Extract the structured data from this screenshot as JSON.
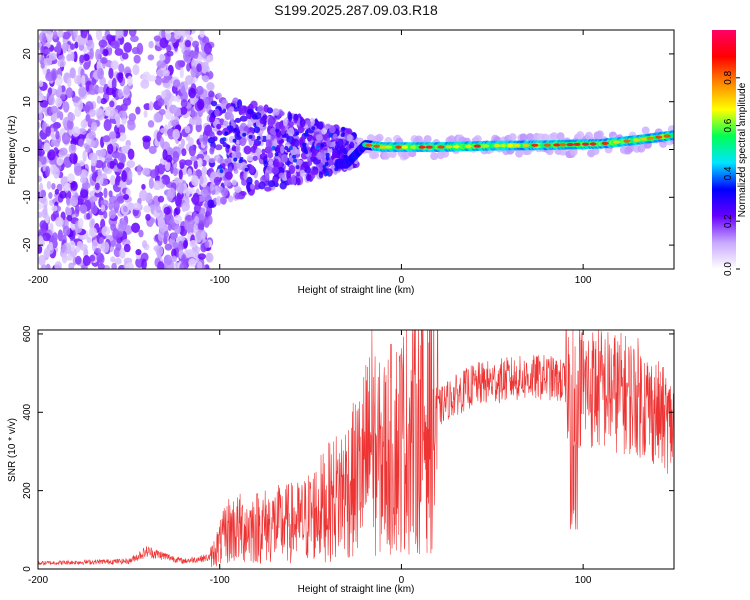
{
  "title": "S199.2025.287.09.03.R18",
  "colors": {
    "snr_line": "#ee3333",
    "axis": "#000000",
    "colormap": [
      "#ffffff",
      "#c8a8ff",
      "#6600ff",
      "#0000ff",
      "#00e5ff",
      "#00ff55",
      "#ffff00",
      "#ff8800",
      "#ff0000",
      "#ff0066"
    ]
  },
  "chart_data": [
    {
      "type": "heatmap",
      "name": "spectrogram",
      "xlabel": "Height of straight line (km)",
      "ylabel": "Frequency (Hz)",
      "xlim": [
        -200,
        150
      ],
      "ylim": [
        -25,
        25
      ],
      "xticks": [
        -200,
        -100,
        0,
        100
      ],
      "yticks": [
        -20,
        -10,
        0,
        10,
        20
      ],
      "colorbar": {
        "label": "Normalized spectral amplitude",
        "range": [
          0,
          1
        ],
        "ticks": [
          "0.0",
          "0.2",
          "0.4",
          "0.6",
          "0.8"
        ]
      },
      "ridge": [
        {
          "x": -30,
          "y": -3.0
        },
        {
          "x": -20,
          "y": 1.0
        },
        {
          "x": -10,
          "y": 0.5
        },
        {
          "x": 0,
          "y": 0.5
        },
        {
          "x": 20,
          "y": 0.5
        },
        {
          "x": 50,
          "y": 0.8
        },
        {
          "x": 80,
          "y": 0.9
        },
        {
          "x": 110,
          "y": 1.2
        },
        {
          "x": 130,
          "y": 2.0
        },
        {
          "x": 150,
          "y": 3.0
        }
      ]
    },
    {
      "type": "line",
      "name": "snr",
      "xlabel": "Height of straight line (km)",
      "ylabel": "SNR (10 * v/v)",
      "xlim": [
        -200,
        150
      ],
      "ylim": [
        0,
        610
      ],
      "xticks": [
        -200,
        -100,
        0,
        100
      ],
      "yticks": [
        0,
        200,
        400,
        600
      ],
      "envelope": [
        {
          "x": -200,
          "y": 15
        },
        {
          "x": -150,
          "y": 20
        },
        {
          "x": -140,
          "y": 45
        },
        {
          "x": -120,
          "y": 20
        },
        {
          "x": -105,
          "y": 30
        },
        {
          "x": -95,
          "y": 100
        },
        {
          "x": -75,
          "y": 110
        },
        {
          "x": -55,
          "y": 120
        },
        {
          "x": -40,
          "y": 170
        },
        {
          "x": -25,
          "y": 230
        },
        {
          "x": -18,
          "y": 300
        },
        {
          "x": -12,
          "y": 280
        },
        {
          "x": 0,
          "y": 330
        },
        {
          "x": 15,
          "y": 380
        },
        {
          "x": 25,
          "y": 430
        },
        {
          "x": 40,
          "y": 470
        },
        {
          "x": 60,
          "y": 485
        },
        {
          "x": 80,
          "y": 490
        },
        {
          "x": 95,
          "y": 470
        },
        {
          "x": 110,
          "y": 460
        },
        {
          "x": 130,
          "y": 440
        },
        {
          "x": 150,
          "y": 360
        }
      ]
    }
  ]
}
